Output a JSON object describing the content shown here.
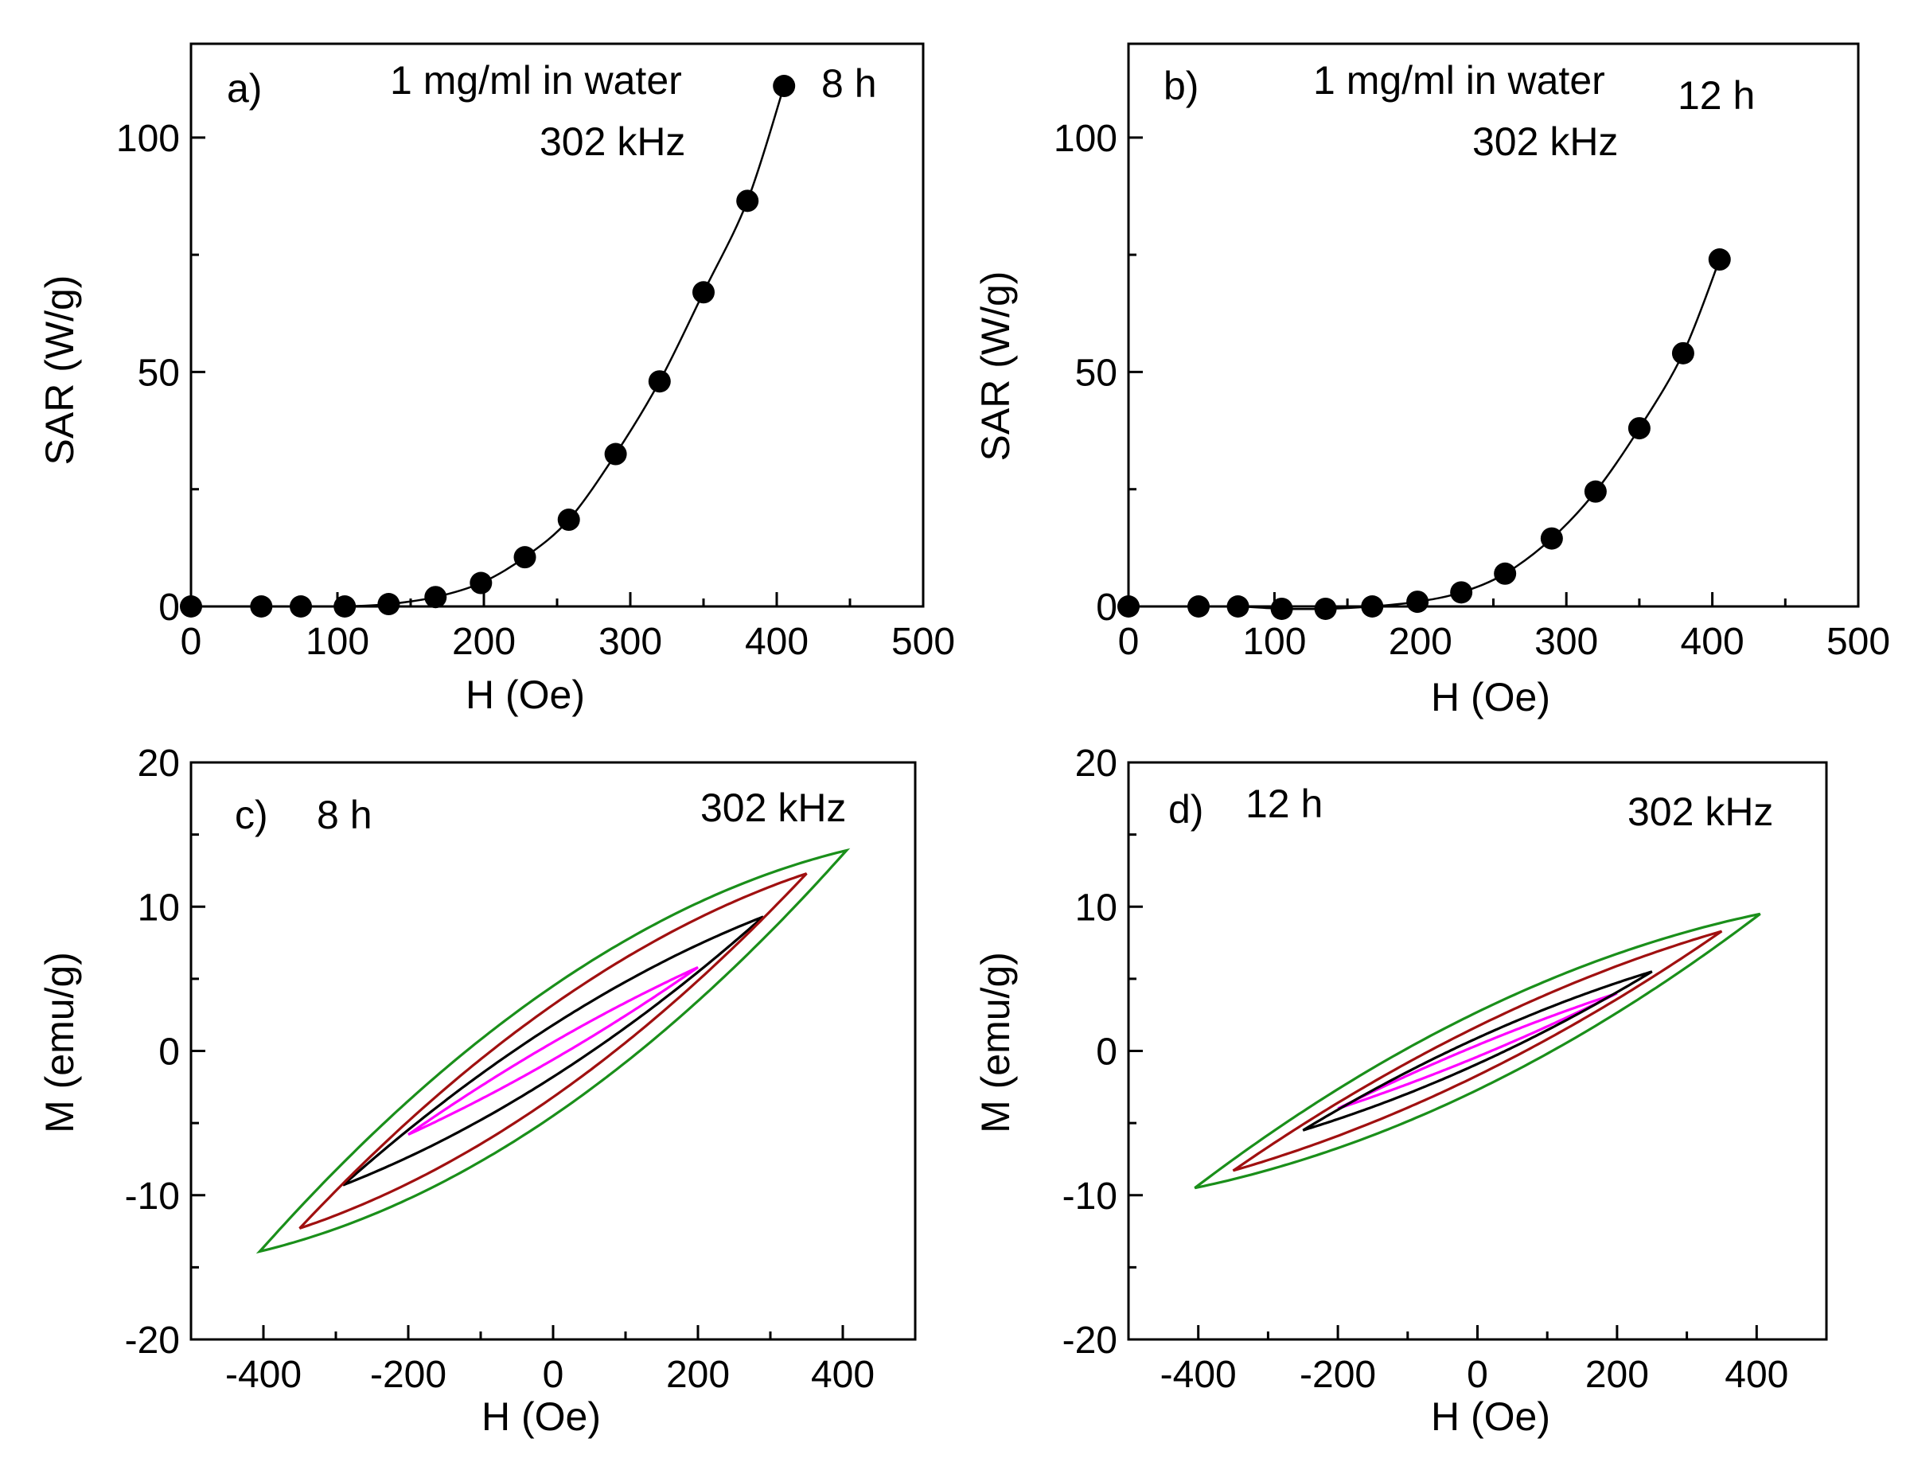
{
  "chart_data": [
    {
      "id": "a",
      "type": "scatter",
      "panel_label": "a)",
      "annotations": [
        "1 mg/ml in water",
        "302 kHz",
        "8 h"
      ],
      "xlabel": "H (Oe)",
      "ylabel": "SAR (W/g)",
      "xlim": [
        0,
        500
      ],
      "ylim": [
        0,
        120
      ],
      "xticks": [
        0,
        100,
        200,
        300,
        400,
        500
      ],
      "yticks": [
        0,
        50,
        100
      ],
      "x": [
        0,
        48,
        75,
        105,
        135,
        167,
        198,
        228,
        258,
        290,
        320,
        350,
        380,
        405
      ],
      "y": [
        0,
        0,
        0,
        0,
        0.5,
        2,
        5,
        10.5,
        18.5,
        32.5,
        48,
        67,
        86.5,
        111
      ]
    },
    {
      "id": "b",
      "type": "scatter",
      "panel_label": "b)",
      "annotations": [
        "1 mg/ml in water",
        "302 kHz",
        "12 h"
      ],
      "xlabel": "H (Oe)",
      "ylabel": "SAR (W/g)",
      "xlim": [
        0,
        500
      ],
      "ylim": [
        0,
        120
      ],
      "xticks": [
        0,
        100,
        200,
        300,
        400,
        500
      ],
      "yticks": [
        0,
        50,
        100
      ],
      "x": [
        0,
        48,
        75,
        105,
        135,
        167,
        198,
        228,
        258,
        290,
        320,
        350,
        380,
        405
      ],
      "y": [
        0,
        0,
        0,
        -0.5,
        -0.5,
        0,
        1,
        3,
        7,
        14.5,
        24.5,
        38,
        54,
        74
      ]
    },
    {
      "id": "c",
      "type": "line",
      "panel_label": "c)",
      "annotations": [
        "8 h",
        "302 kHz"
      ],
      "xlabel": "H (Oe)",
      "ylabel": "M (emu/g)",
      "xlim": [
        -500,
        500
      ],
      "ylim": [
        -20,
        20
      ],
      "xticks": [
        -400,
        -200,
        0,
        200,
        400
      ],
      "yticks": [
        -20,
        -10,
        0,
        10,
        20
      ],
      "series": [
        {
          "name": "loop-200Oe",
          "color": "#ff00ff",
          "hmax": 200,
          "mmax": 5.8,
          "mr": 0.6
        },
        {
          "name": "loop-290Oe",
          "color": "#000000",
          "hmax": 290,
          "mmax": 9.3,
          "mr": 1.8
        },
        {
          "name": "loop-350Oe",
          "color": "#a01010",
          "hmax": 350,
          "mmax": 12.3,
          "mr": 3.2
        },
        {
          "name": "loop-405Oe",
          "color": "#1a8f1a",
          "hmax": 405,
          "mmax": 13.9,
          "mr": 4.5
        }
      ]
    },
    {
      "id": "d",
      "type": "line",
      "panel_label": "d)",
      "annotations": [
        "12 h",
        "302 kHz"
      ],
      "xlabel": "H (Oe)",
      "ylabel": "M (emu/g)",
      "xlim": [
        -500,
        500
      ],
      "ylim": [
        -20,
        20
      ],
      "xticks": [
        -400,
        -200,
        0,
        200,
        400
      ],
      "yticks": [
        -20,
        -10,
        0,
        10,
        20
      ],
      "series": [
        {
          "name": "loop-200Oe",
          "color": "#ff00ff",
          "hmax": 200,
          "mmax": 4.0,
          "mr": 0.4
        },
        {
          "name": "loop-250Oe",
          "color": "#000000",
          "hmax": 250,
          "mmax": 5.5,
          "mr": 0.9
        },
        {
          "name": "loop-350Oe",
          "color": "#a01010",
          "hmax": 350,
          "mmax": 8.3,
          "mr": 1.7
        },
        {
          "name": "loop-405Oe",
          "color": "#1a8f1a",
          "hmax": 405,
          "mmax": 9.5,
          "mr": 2.7
        }
      ]
    }
  ]
}
